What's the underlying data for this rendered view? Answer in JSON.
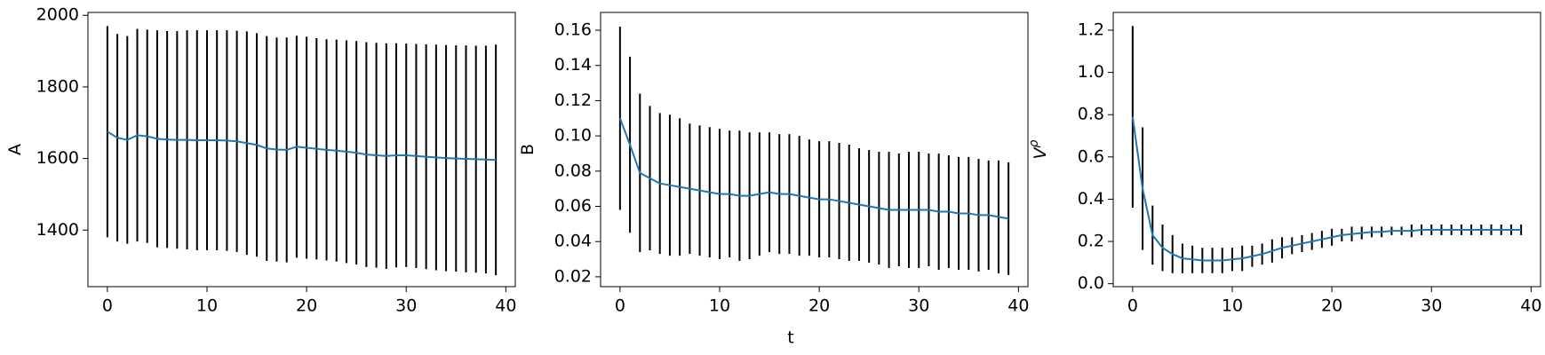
{
  "figure": {
    "xlabel": "t"
  },
  "chart_data": [
    {
      "type": "line",
      "ylabel": "A",
      "color": "#1f77b4",
      "error_color": "#000000",
      "x": [
        0,
        1,
        2,
        3,
        4,
        5,
        6,
        7,
        8,
        9,
        10,
        11,
        12,
        13,
        14,
        15,
        16,
        17,
        18,
        19,
        20,
        21,
        22,
        23,
        24,
        25,
        26,
        27,
        28,
        29,
        30,
        31,
        32,
        33,
        34,
        35,
        36,
        37,
        38,
        39
      ],
      "values": [
        1675,
        1658,
        1652,
        1665,
        1662,
        1655,
        1653,
        1652,
        1652,
        1651,
        1651,
        1651,
        1650,
        1648,
        1643,
        1638,
        1628,
        1625,
        1624,
        1633,
        1630,
        1627,
        1624,
        1622,
        1619,
        1616,
        1611,
        1609,
        1607,
        1609,
        1609,
        1607,
        1605,
        1603,
        1601,
        1600,
        1599,
        1598,
        1597,
        1596
      ],
      "errors": [
        295,
        290,
        290,
        297,
        298,
        303,
        303,
        304,
        306,
        307,
        307,
        307,
        308,
        309,
        312,
        312,
        314,
        313,
        314,
        310,
        310,
        309,
        309,
        310,
        311,
        312,
        314,
        314,
        315,
        313,
        312,
        313,
        314,
        315,
        316,
        316,
        317,
        317,
        318,
        322
      ],
      "xlim": [
        -1.95,
        40.95
      ],
      "xticks": [
        0,
        10,
        20,
        30,
        40
      ],
      "ylim": [
        1242,
        2008
      ],
      "yticks": [
        1400,
        1600,
        1800,
        2000
      ]
    },
    {
      "type": "line",
      "ylabel": "B",
      "color": "#1f77b4",
      "error_color": "#000000",
      "x": [
        0,
        1,
        2,
        3,
        4,
        5,
        6,
        7,
        8,
        9,
        10,
        11,
        12,
        13,
        14,
        15,
        16,
        17,
        18,
        19,
        20,
        21,
        22,
        23,
        24,
        25,
        26,
        27,
        28,
        29,
        30,
        31,
        32,
        33,
        34,
        35,
        36,
        37,
        38,
        39
      ],
      "values": [
        0.11,
        0.095,
        0.079,
        0.076,
        0.073,
        0.072,
        0.071,
        0.07,
        0.069,
        0.068,
        0.067,
        0.067,
        0.066,
        0.066,
        0.067,
        0.068,
        0.067,
        0.067,
        0.066,
        0.065,
        0.064,
        0.064,
        0.063,
        0.062,
        0.061,
        0.06,
        0.059,
        0.058,
        0.058,
        0.058,
        0.058,
        0.058,
        0.057,
        0.057,
        0.056,
        0.056,
        0.055,
        0.055,
        0.054,
        0.053
      ],
      "errors": [
        0.052,
        0.05,
        0.045,
        0.041,
        0.04,
        0.04,
        0.039,
        0.037,
        0.037,
        0.037,
        0.037,
        0.036,
        0.037,
        0.036,
        0.035,
        0.034,
        0.034,
        0.034,
        0.034,
        0.033,
        0.033,
        0.033,
        0.033,
        0.033,
        0.032,
        0.032,
        0.032,
        0.033,
        0.032,
        0.033,
        0.033,
        0.032,
        0.033,
        0.032,
        0.032,
        0.032,
        0.032,
        0.031,
        0.032,
        0.032
      ],
      "xlim": [
        -1.95,
        40.95
      ],
      "xticks": [
        0,
        10,
        20,
        30,
        40
      ],
      "ylim": [
        0.0144,
        0.1701
      ],
      "yticks": [
        0.02,
        0.04,
        0.06,
        0.08,
        {
          "value": 0.1,
          "label": "0.10"
        },
        0.12,
        0.14,
        0.16
      ]
    },
    {
      "type": "line",
      "ylabel": "V",
      "ylabel_sup": "ρ",
      "color": "#1f77b4",
      "error_color": "#000000",
      "x": [
        0,
        1,
        2,
        3,
        4,
        5,
        6,
        7,
        8,
        9,
        10,
        11,
        12,
        13,
        14,
        15,
        16,
        17,
        18,
        19,
        20,
        21,
        22,
        23,
        24,
        25,
        26,
        27,
        28,
        29,
        30,
        31,
        32,
        33,
        34,
        35,
        36,
        37,
        38,
        39
      ],
      "values": [
        0.79,
        0.45,
        0.23,
        0.17,
        0.14,
        0.12,
        0.115,
        0.11,
        0.11,
        0.11,
        0.115,
        0.12,
        0.13,
        0.14,
        0.155,
        0.17,
        0.18,
        0.19,
        0.2,
        0.21,
        0.22,
        0.23,
        0.235,
        0.24,
        0.245,
        0.245,
        0.25,
        0.25,
        0.25,
        0.255,
        0.255,
        0.255,
        0.255,
        0.255,
        0.255,
        0.255,
        0.255,
        0.255,
        0.255,
        0.255
      ],
      "errors": [
        0.43,
        0.29,
        0.14,
        0.11,
        0.09,
        0.07,
        0.065,
        0.06,
        0.06,
        0.06,
        0.055,
        0.06,
        0.05,
        0.05,
        0.055,
        0.05,
        0.04,
        0.04,
        0.04,
        0.04,
        0.04,
        0.03,
        0.035,
        0.03,
        0.025,
        0.025,
        0.02,
        0.02,
        0.03,
        0.025,
        0.025,
        0.025,
        0.025,
        0.025,
        0.025,
        0.025,
        0.025,
        0.025,
        0.025,
        0.025
      ],
      "xlim": [
        -1.95,
        40.95
      ],
      "xticks": [
        0,
        10,
        20,
        30,
        40
      ],
      "ylim": [
        -0.014,
        1.284
      ],
      "yticks": [
        {
          "value": 0,
          "label": "0.0"
        },
        0.2,
        0.4,
        0.6,
        0.8,
        {
          "value": 1,
          "label": "1.0"
        },
        1.2
      ]
    }
  ]
}
